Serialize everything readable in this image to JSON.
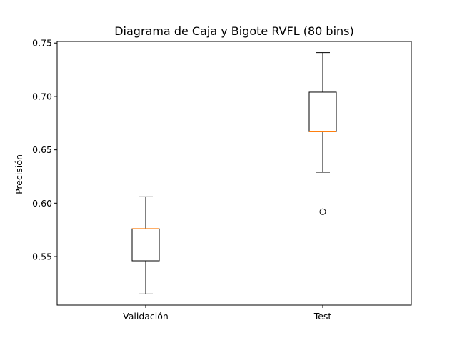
{
  "chart_data": {
    "type": "boxplot",
    "title": "Diagrama de Caja y Bigote RVFL (80 bins)",
    "xlabel": "",
    "ylabel": "Precisión",
    "categories": [
      "Validación",
      "Test"
    ],
    "boxes": [
      {
        "label": "Validación",
        "whisker_low": 0.515,
        "q1": 0.546,
        "median": 0.576,
        "q3": 0.576,
        "whisker_high": 0.606,
        "outliers": []
      },
      {
        "label": "Test",
        "whisker_low": 0.629,
        "q1": 0.667,
        "median": 0.667,
        "q3": 0.704,
        "whisker_high": 0.741,
        "outliers": [
          0.592
        ]
      }
    ],
    "ylim": [
      0.5045,
      0.7515
    ],
    "yticks": [
      0.55,
      0.6,
      0.65,
      0.7,
      0.75
    ],
    "ytick_labels": [
      "0.55",
      "0.60",
      "0.65",
      "0.70",
      "0.75"
    ],
    "grid": false,
    "colors": {
      "box": "#000000",
      "median": "#ff7f0e",
      "outlier": "#000000"
    }
  }
}
